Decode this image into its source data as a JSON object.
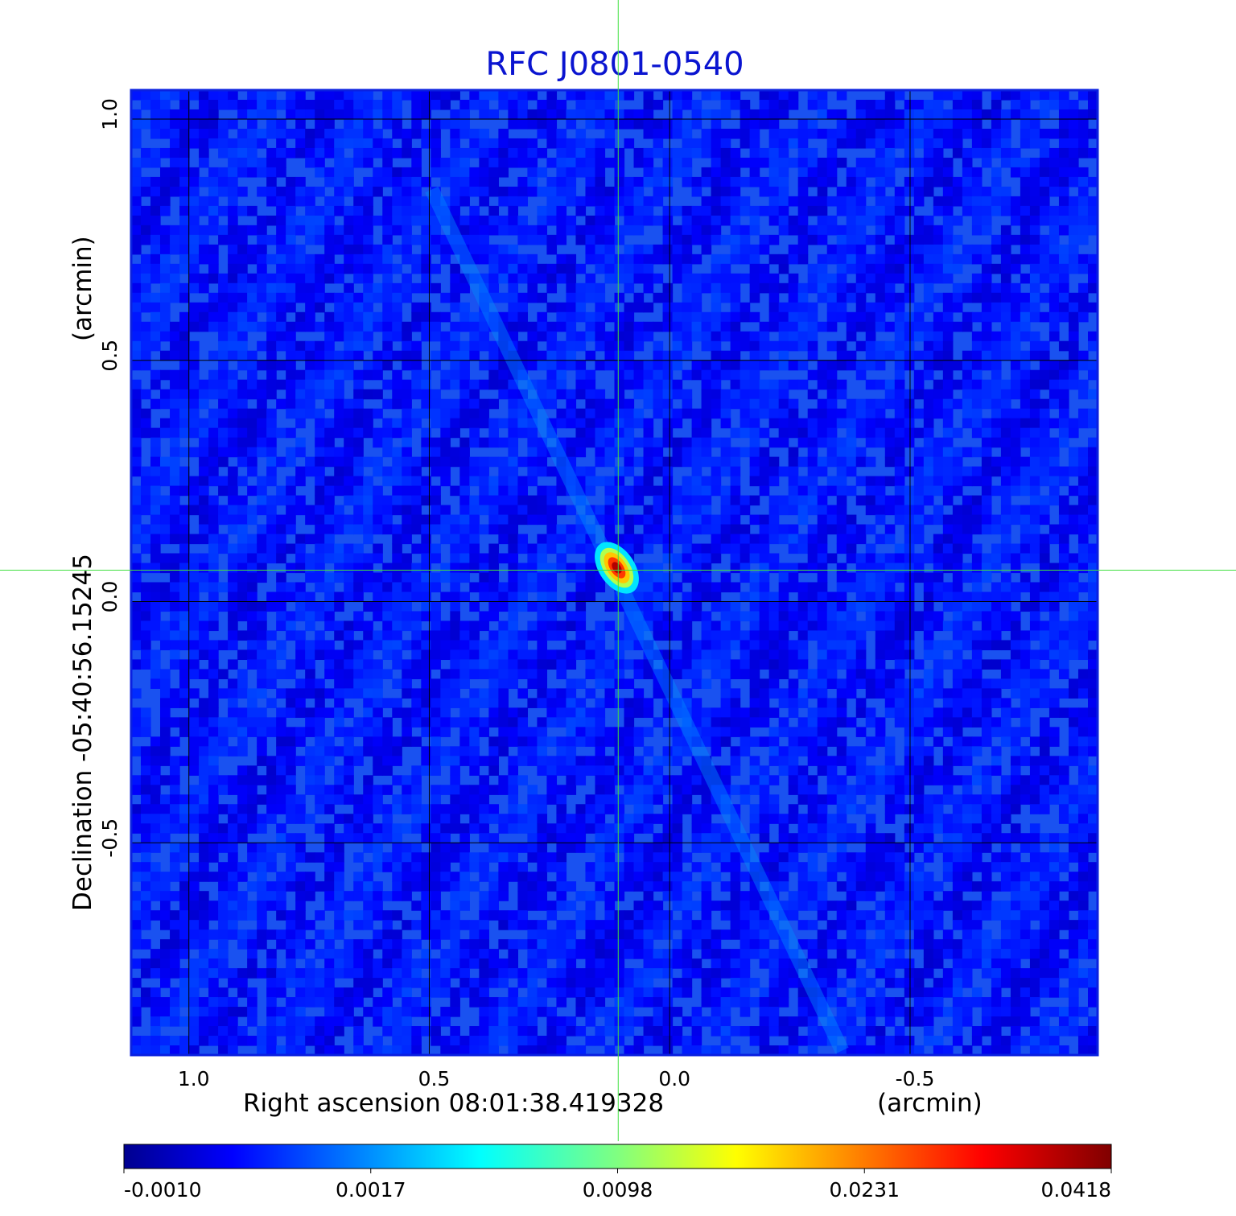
{
  "chart_data": {
    "type": "heatmap",
    "title": "RFC J0801-0540",
    "x_axis": {
      "label": "Right ascension  08:01:38.419328",
      "unit_label": "(arcmin)",
      "ticks": [
        1.0,
        0.5,
        0.0,
        -0.5
      ],
      "tick_labels": [
        "1.0",
        "0.5",
        "0.0",
        "-0.5"
      ],
      "range": [
        1.12,
        -0.89
      ],
      "reversed": true
    },
    "y_axis": {
      "label": "Declination  -05:40:56.15245",
      "unit_label": "(arcmin)",
      "ticks": [
        1.0,
        0.5,
        0.0,
        -0.5
      ],
      "tick_labels": [
        "1.0",
        "0.5",
        "0.0",
        "-0.5"
      ],
      "range": [
        -0.94,
        1.06
      ]
    },
    "grid": true,
    "colormap": "jet",
    "colorbar": {
      "position": "bottom",
      "tick_labels": [
        "-0.0010",
        "0.0017",
        "0.0098",
        "0.0231",
        "0.0418"
      ],
      "range": [
        -0.001,
        0.0418
      ]
    },
    "source": {
      "peak_value": 0.0418,
      "ra_offset_arcmin": 0.11,
      "dec_offset_arcmin": 0.07
    },
    "crosshair": {
      "ra_offset_arcmin": 0.107,
      "dec_offset_arcmin": 0.065,
      "color": "#40e040"
    },
    "background_color": "#1a52f0"
  }
}
